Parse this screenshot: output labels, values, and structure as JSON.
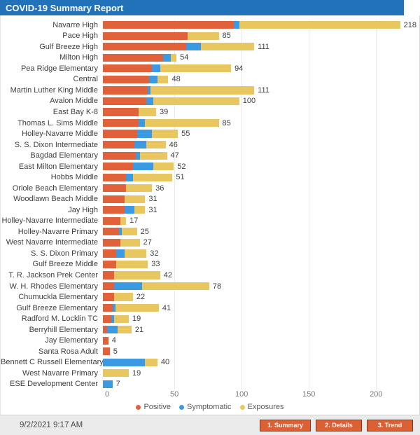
{
  "header": {
    "title": "COVID-19 Summary Report"
  },
  "chart_data": {
    "type": "bar",
    "orientation": "horizontal",
    "stacked": true,
    "title": "COVID-19 Summary Report",
    "xlabel": "",
    "ylabel": "",
    "grid": true,
    "legend_position": "bottom",
    "x_axis": {
      "ticks": [
        0,
        50,
        100,
        150,
        200
      ],
      "max": 230
    },
    "categories": [
      "Navarre High",
      "Pace High",
      "Gulf Breeze High",
      "Milton High",
      "Pea Ridge Elementary",
      "Central",
      "Martin Luther King Middle",
      "Avalon Middle",
      "East Bay K-8",
      "Thomas L. Sims Middle",
      "Holley-Navarre Middle",
      "S. S. Dixon Intermediate",
      "Bagdad Elementary",
      "East Milton Elementary",
      "Hobbs Middle",
      "Oriole Beach Elementary",
      "Woodlawn Beach Middle",
      "Jay High",
      "Holley-Navarre Intermediate",
      "Holley-Navarre Primary",
      "West Navarre Intermediate",
      "S. S. Dixon Primary",
      "Gulf Breeze Middle",
      "T. R. Jackson Prek Center",
      "W. H. Rhodes Elementary",
      "Chumuckla Elementary",
      "Gulf Breeze Elementary",
      "Radford M. Locklin TC",
      "Berryhill Elementary",
      "Jay Elementary",
      "Santa Rosa Adult",
      "Bennett C Russell Elementary",
      "West Navarre Primary",
      "ESE Development Center"
    ],
    "series": [
      {
        "name": "Positive",
        "color": "#E0613A",
        "values": [
          96,
          62,
          61,
          44,
          36,
          34,
          33,
          32,
          26,
          26,
          25,
          23,
          24,
          22,
          17,
          17,
          16,
          16,
          13,
          12,
          13,
          10,
          10,
          8,
          8,
          8,
          7,
          6,
          3,
          4,
          5,
          0,
          0,
          0
        ]
      },
      {
        "name": "Symptomatic",
        "color": "#3B9AE1",
        "values": [
          4,
          0,
          11,
          6,
          6,
          6,
          2,
          5,
          0,
          5,
          11,
          9,
          3,
          15,
          5,
          0,
          0,
          7,
          0,
          2,
          0,
          6,
          0,
          0,
          21,
          0,
          2,
          2,
          8,
          0,
          0,
          31,
          0,
          7
        ]
      },
      {
        "name": "Exposures",
        "color": "#E8C660",
        "values": [
          118,
          23,
          39,
          4,
          52,
          8,
          76,
          63,
          13,
          54,
          19,
          14,
          20,
          15,
          29,
          19,
          15,
          8,
          4,
          11,
          14,
          16,
          23,
          34,
          49,
          14,
          32,
          11,
          10,
          0,
          0,
          9,
          19,
          0
        ]
      }
    ],
    "totals": [
      218,
      85,
      111,
      54,
      94,
      48,
      111,
      100,
      39,
      85,
      55,
      46,
      47,
      52,
      51,
      36,
      31,
      31,
      17,
      25,
      27,
      32,
      33,
      42,
      78,
      22,
      41,
      19,
      21,
      4,
      5,
      40,
      19,
      7
    ],
    "legend": [
      {
        "label": "Positive",
        "color": "#E0613A"
      },
      {
        "label": "Symptomatic",
        "color": "#3B9AE1"
      },
      {
        "label": "Exposures",
        "color": "#E8C660"
      }
    ]
  },
  "footer": {
    "timestamp": "9/2/2021 9:17 AM",
    "buttons": [
      {
        "label": "1. Summary"
      },
      {
        "label": "2. Details"
      },
      {
        "label": "3. Trend"
      }
    ]
  },
  "colors": {
    "title_bar": "#2272B9",
    "positive": "#E0613A",
    "symptomatic": "#3B9AE1",
    "exposures": "#E8C660",
    "button_fill": "#DB6134",
    "button_border": "#943019",
    "footer_bg": "#EBEBEB"
  }
}
